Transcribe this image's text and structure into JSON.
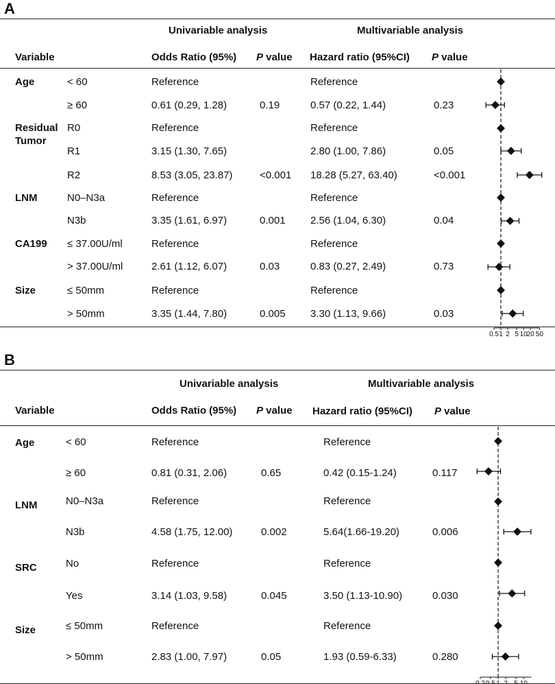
{
  "panels": [
    {
      "label": "A",
      "headers": {
        "univariable": "Univariable analysis",
        "multivariable": "Multivariable analysis",
        "variable": "Variable",
        "odds": "Odds Ratio (95%)",
        "p_uni_italic": "P",
        "p_uni_rest": " value",
        "hazard": "Hazard ratio (95%CI)",
        "p_multi_italic": "P",
        "p_multi_rest": " value"
      },
      "groups": [
        {
          "name": "Age",
          "name2": ""
        },
        {
          "name": "Residual",
          "name2": "Tumor"
        },
        {
          "name": "LNM",
          "name2": ""
        },
        {
          "name": "CA199",
          "name2": ""
        },
        {
          "name": "Size",
          "name2": ""
        }
      ],
      "rows": [
        {
          "level": "< 60",
          "or": "Reference",
          "p1": "",
          "hr": "Reference",
          "p2": ""
        },
        {
          "level": "≥ 60",
          "or": "0.61 (0.29, 1.28)",
          "p1": "0.19",
          "hr": "0.57 (0.22, 1.44)",
          "p2": "0.23"
        },
        {
          "level": "R0",
          "or": "Reference",
          "p1": "",
          "hr": "Reference",
          "p2": ""
        },
        {
          "level": "R1",
          "or": "3.15 (1.30, 7.65)",
          "p1": "",
          "hr": "2.80 (1.00, 7.86)",
          "p2": "0.05"
        },
        {
          "level": "R2",
          "or": "8.53 (3.05, 23.87)",
          "p1": "<0.001",
          "hr": "18.28 (5.27, 63.40)",
          "p2": "<0.001"
        },
        {
          "level": "N0–N3a",
          "or": "Reference",
          "p1": "",
          "hr": "Reference",
          "p2": ""
        },
        {
          "level": "N3b",
          "or": "3.35 (1.61, 6.97)",
          "p1": "0.001",
          "hr": "2.56 (1.04, 6.30)",
          "p2": "0.04"
        },
        {
          "level": "≤ 37.00U/ml",
          "or": "Reference",
          "p1": "",
          "hr": "Reference",
          "p2": ""
        },
        {
          "level": "> 37.00U/ml",
          "or": "2.61 (1.12, 6.07)",
          "p1": "0.03",
          "hr": "0.83 (0.27, 2.49)",
          "p2": "0.73"
        },
        {
          "level": "≤ 50mm",
          "or": "Reference",
          "p1": "",
          "hr": "Reference",
          "p2": ""
        },
        {
          "level": "> 50mm",
          "or": "3.35 (1.44, 7.80)",
          "p1": "0.005",
          "hr": "3.30 (1.13, 9.66)",
          "p2": "0.03"
        }
      ]
    },
    {
      "label": "B",
      "headers": {
        "univariable": "Univariable analysis",
        "multivariable": "Multivariable analysis",
        "variable": "Variable",
        "odds": "Odds Ratio (95%)",
        "p_uni_italic": "P",
        "p_uni_rest": " value",
        "hazard": "Hazard ratio (95%CI)",
        "p_multi_italic": "P",
        "p_multi_rest": " value"
      },
      "groups": [
        {
          "name": "Age",
          "name2": ""
        },
        {
          "name": "LNM",
          "name2": ""
        },
        {
          "name": "SRC",
          "name2": ""
        },
        {
          "name": "Size",
          "name2": ""
        }
      ],
      "rows": [
        {
          "level": "< 60",
          "or": "Reference",
          "p1": "",
          "hr": "Reference",
          "p2": ""
        },
        {
          "level": "≥ 60",
          "or": "0.81 (0.31, 2.06)",
          "p1": "0.65",
          "hr": "0.42 (0.15-1.24)",
          "p2": "0.117"
        },
        {
          "level": "N0–N3a",
          "or": "Reference",
          "p1": "",
          "hr": "Reference",
          "p2": ""
        },
        {
          "level": "N3b",
          "or": "4.58 (1.75, 12.00)",
          "p1": "0.002",
          "hr": "5.64(1.66-19.20)",
          "p2": "0.006"
        },
        {
          "level": "No",
          "or": "Reference",
          "p1": "",
          "hr": "Reference",
          "p2": ""
        },
        {
          "level": "Yes",
          "or": "3.14 (1.03, 9.58)",
          "p1": "0.045",
          "hr": "3.50 (1.13-10.90)",
          "p2": "0.030"
        },
        {
          "level": "≤ 50mm",
          "or": "Reference",
          "p1": "",
          "hr": "Reference",
          "p2": ""
        },
        {
          "level": "> 50mm",
          "or": "2.83 (1.00, 7.97)",
          "p1": "0.05",
          "hr": "1.93 (0.59-6.33)",
          "p2": "0.280"
        }
      ]
    }
  ],
  "chart_data": [
    {
      "type": "forest",
      "panel": "A",
      "scale": "log",
      "reference_line": 1,
      "xlim": [
        0.5,
        50
      ],
      "ticks": [
        0.5,
        1,
        2,
        5,
        10,
        20,
        50
      ],
      "tick_labels": [
        "0.5",
        "1",
        "2",
        "5",
        "10",
        "20",
        "50"
      ],
      "points": [
        {
          "label": "Age < 60",
          "est": 1,
          "lo": 1,
          "hi": 1
        },
        {
          "label": "Age ≥ 60",
          "est": 0.57,
          "lo": 0.22,
          "hi": 1.44
        },
        {
          "label": "R0",
          "est": 1,
          "lo": 1,
          "hi": 1
        },
        {
          "label": "R1",
          "est": 2.8,
          "lo": 1.0,
          "hi": 7.86
        },
        {
          "label": "R2",
          "est": 18.28,
          "lo": 5.27,
          "hi": 63.4
        },
        {
          "label": "N0–N3a",
          "est": 1,
          "lo": 1,
          "hi": 1
        },
        {
          "label": "N3b",
          "est": 2.56,
          "lo": 1.04,
          "hi": 6.3
        },
        {
          "label": "≤ 37.00U/ml",
          "est": 1,
          "lo": 1,
          "hi": 1
        },
        {
          "label": "> 37.00U/ml",
          "est": 0.83,
          "lo": 0.27,
          "hi": 2.49
        },
        {
          "label": "≤ 50mm",
          "est": 1,
          "lo": 1,
          "hi": 1
        },
        {
          "label": "> 50mm",
          "est": 3.3,
          "lo": 1.13,
          "hi": 9.66
        }
      ]
    },
    {
      "type": "forest",
      "panel": "B",
      "scale": "log",
      "reference_line": 1,
      "xlim": [
        0.2,
        20
      ],
      "ticks": [
        0.2,
        0.5,
        1,
        2,
        5,
        10
      ],
      "tick_labels": [
        "0.2",
        "0.5",
        "1",
        "2",
        "5",
        "10"
      ],
      "points": [
        {
          "label": "Age < 60",
          "est": 1,
          "lo": 1,
          "hi": 1
        },
        {
          "label": "Age ≥ 60",
          "est": 0.42,
          "lo": 0.15,
          "hi": 1.24
        },
        {
          "label": "N0–N3a",
          "est": 1,
          "lo": 1,
          "hi": 1
        },
        {
          "label": "N3b",
          "est": 5.64,
          "lo": 1.66,
          "hi": 19.2
        },
        {
          "label": "SRC No",
          "est": 1,
          "lo": 1,
          "hi": 1
        },
        {
          "label": "SRC Yes",
          "est": 3.5,
          "lo": 1.13,
          "hi": 10.9
        },
        {
          "label": "≤ 50mm",
          "est": 1,
          "lo": 1,
          "hi": 1
        },
        {
          "label": "> 50mm",
          "est": 1.93,
          "lo": 0.59,
          "hi": 6.33
        }
      ]
    }
  ]
}
